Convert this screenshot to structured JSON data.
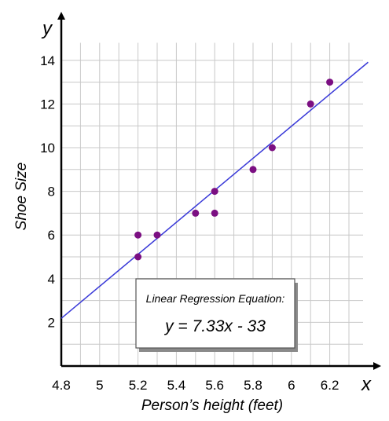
{
  "chart_data": {
    "type": "scatter",
    "xlabel": "Person’s height (feet)",
    "ylabel": "Shoe Size",
    "x_axis_letter": "x",
    "y_axis_letter": "y",
    "xlim": [
      4.8,
      6.4
    ],
    "ylim": [
      0,
      15
    ],
    "grid": true,
    "x_ticks": [
      {
        "value": 4.8,
        "label": "4.8"
      },
      {
        "value": 5.0,
        "label": "5"
      },
      {
        "value": 5.2,
        "label": "5.2"
      },
      {
        "value": 5.4,
        "label": "5.4"
      },
      {
        "value": 5.6,
        "label": "5.6"
      },
      {
        "value": 5.8,
        "label": "5.8"
      },
      {
        "value": 6.0,
        "label": "6"
      },
      {
        "value": 6.2,
        "label": "6.2"
      }
    ],
    "y_ticks": [
      {
        "value": 2,
        "label": "2"
      },
      {
        "value": 4,
        "label": "4"
      },
      {
        "value": 6,
        "label": "6"
      },
      {
        "value": 8,
        "label": "8"
      },
      {
        "value": 10,
        "label": "10"
      },
      {
        "value": 12,
        "label": "12"
      },
      {
        "value": 14,
        "label": "14"
      }
    ],
    "points": [
      {
        "x": 5.2,
        "y": 6
      },
      {
        "x": 5.2,
        "y": 5
      },
      {
        "x": 5.3,
        "y": 6
      },
      {
        "x": 5.5,
        "y": 7
      },
      {
        "x": 5.6,
        "y": 8
      },
      {
        "x": 5.6,
        "y": 7
      },
      {
        "x": 5.8,
        "y": 9
      },
      {
        "x": 5.9,
        "y": 10
      },
      {
        "x": 6.1,
        "y": 12
      },
      {
        "x": 6.2,
        "y": 13
      }
    ],
    "regression": {
      "slope": 7.33,
      "intercept": -33
    },
    "annotation": {
      "title": "Linear Regression Equation:",
      "equation": "y = 7.33x - 33"
    },
    "colors": {
      "point": "#7b0f82",
      "line": "#3a3ad8",
      "grid": "#c8c8c8",
      "axis": "#000000"
    }
  }
}
